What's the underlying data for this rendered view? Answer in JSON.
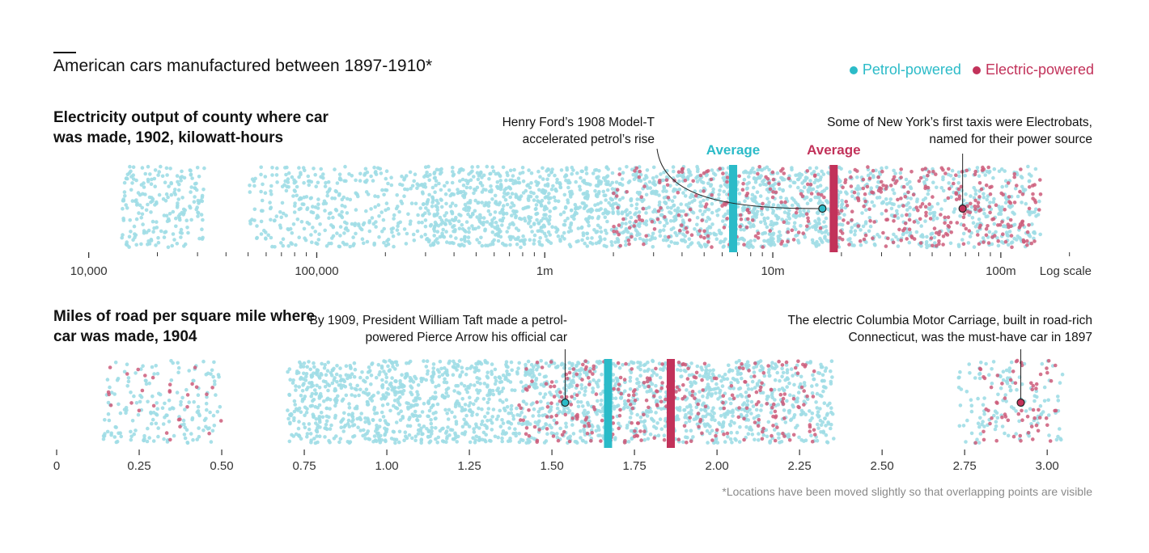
{
  "title": "American cars manufactured between 1897-1910*",
  "legend": [
    {
      "label": "Petrol-powered",
      "color": "#2bbbc8"
    },
    {
      "label": "Electric-powered",
      "color": "#c2325a"
    }
  ],
  "colors": {
    "petrol_dot": "#9fdde6",
    "electric_dot": "#cc5c7a",
    "petrol": "#2bbbc8",
    "electric": "#c2325a",
    "axis": "#333333"
  },
  "panels": {
    "electricity": {
      "title": "Electricity output of county where car was made, 1902, kilowatt-hours",
      "scale_label": "Log scale",
      "avg_label_petrol": "Average",
      "avg_label_electric": "Average",
      "annotation_left": "Henry Ford’s 1908 Model-T accelerated petrol’s rise",
      "annotation_right": "Some of New York’s first taxis were Electrobats, named for their power source"
    },
    "roads": {
      "title": "Miles of road per square mile where car was made, 1904",
      "annotation_left": "By 1909, President William Taft made a petrol-powered Pierce Arrow his official car",
      "annotation_right": "The electric Columbia Motor Carriage, built in road-rich Connecticut, was the must-have car in 1897"
    }
  },
  "footnote": "*Locations have been moved slightly so that overlapping points are visible",
  "chart_data": [
    {
      "type": "scatter",
      "title": "Electricity output of county where car was made, 1902, kilowatt-hours",
      "xscale": "log",
      "xlim": [
        7000,
        250000000
      ],
      "xticks": [
        10000,
        100000,
        1000000,
        10000000,
        100000000
      ],
      "xtick_labels": [
        "10,000",
        "100,000",
        "1m",
        "10m",
        "100m"
      ],
      "series": [
        {
          "name": "Petrol-powered",
          "average": 6700000
        },
        {
          "name": "Electric-powered",
          "average": 18500000
        }
      ],
      "distribution_bands": {
        "Petrol-powered": [
          {
            "from": 14000,
            "to": 32000,
            "weight": 8
          },
          {
            "from": 50000,
            "to": 300000,
            "weight": 14
          },
          {
            "from": 300000,
            "to": 20000000,
            "weight": 62
          },
          {
            "from": 20000000,
            "to": 150000000,
            "weight": 16
          }
        ],
        "Electric-powered": [
          {
            "from": 2000000,
            "to": 17000000,
            "weight": 40
          },
          {
            "from": 19000000,
            "to": 150000000,
            "weight": 60
          }
        ]
      },
      "highlights": [
        {
          "series": "Petrol-powered",
          "x": 16500000,
          "label": "Henry Ford’s 1908 Model-T accelerated petrol’s rise"
        },
        {
          "series": "Electric-powered",
          "x": 68000000,
          "label": "Some of New York’s first taxis were Electrobats, named for their power source"
        }
      ]
    },
    {
      "type": "scatter",
      "title": "Miles of road per square mile where car was made, 1904",
      "xscale": "linear",
      "xlim": [
        0,
        3.1
      ],
      "xticks": [
        0,
        0.25,
        0.5,
        0.75,
        1.0,
        1.25,
        1.5,
        1.75,
        2.0,
        2.25,
        2.5,
        2.75,
        3.0
      ],
      "xtick_labels": [
        "0",
        "0.25",
        "0.50",
        "0.75",
        "1.00",
        "1.25",
        "1.50",
        "1.75",
        "2.00",
        "2.25",
        "2.50",
        "2.75",
        "3.00"
      ],
      "series": [
        {
          "name": "Petrol-powered",
          "average": 1.67
        },
        {
          "name": "Electric-powered",
          "average": 1.86
        }
      ],
      "distribution_bands": {
        "Petrol-powered": [
          {
            "from": 0.14,
            "to": 0.5,
            "weight": 8
          },
          {
            "from": 0.7,
            "to": 1.4,
            "weight": 38
          },
          {
            "from": 1.4,
            "to": 2.35,
            "weight": 48
          },
          {
            "from": 2.73,
            "to": 3.05,
            "weight": 6
          }
        ],
        "Electric-powered": [
          {
            "from": 0.15,
            "to": 0.5,
            "weight": 8
          },
          {
            "from": 1.4,
            "to": 2.3,
            "weight": 75
          },
          {
            "from": 2.78,
            "to": 3.03,
            "weight": 17
          }
        ]
      },
      "highlights": [
        {
          "series": "Petrol-powered",
          "x": 1.54,
          "label": "By 1909, President William Taft made a petrol-powered Pierce Arrow his official car"
        },
        {
          "series": "Electric-powered",
          "x": 2.92,
          "label": "The electric Columbia Motor Carriage, built in road-rich Connecticut, was the must-have car in 1897"
        }
      ]
    }
  ]
}
